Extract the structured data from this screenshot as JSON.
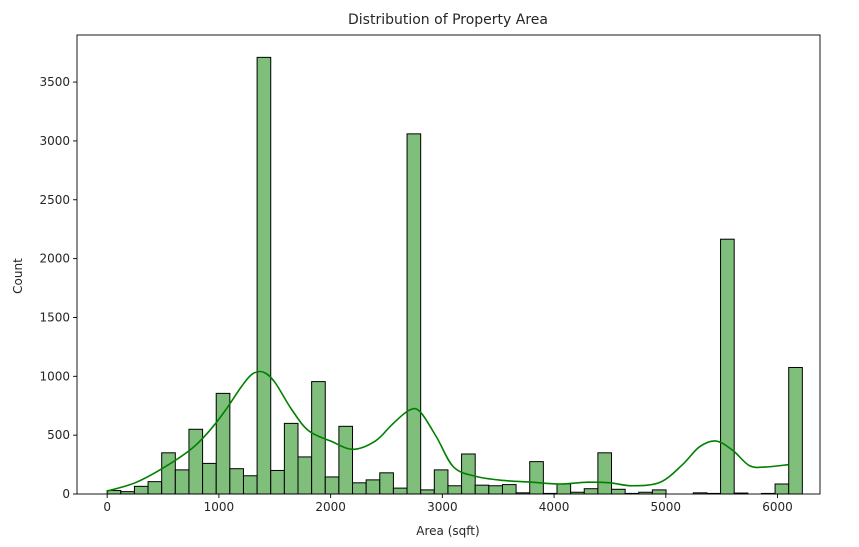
{
  "chart_data": {
    "type": "bar",
    "title": "Distribution of Property Area",
    "xlabel": "Area (sqft)",
    "ylabel": "Count",
    "xlim": [
      -270,
      6380
    ],
    "ylim": [
      0,
      3900
    ],
    "xticks": [
      0,
      1000,
      2000,
      3000,
      4000,
      5000,
      6000
    ],
    "yticks": [
      0,
      500,
      1000,
      1500,
      2000,
      2500,
      3000,
      3500
    ],
    "bin_width": 122,
    "bin_start": 0,
    "values": [
      30,
      20,
      65,
      105,
      350,
      205,
      550,
      260,
      855,
      215,
      155,
      3710,
      200,
      600,
      315,
      955,
      145,
      575,
      95,
      120,
      180,
      50,
      3060,
      35,
      205,
      70,
      340,
      75,
      70,
      80,
      10,
      275,
      5,
      85,
      15,
      45,
      350,
      40,
      5,
      15,
      35,
      0,
      0,
      10,
      5,
      2165,
      8,
      0,
      5,
      85,
      1075
    ],
    "kde": {
      "name": "kde",
      "x": [
        0,
        250,
        500,
        750,
        900,
        1050,
        1200,
        1300,
        1400,
        1500,
        1650,
        1800,
        2000,
        2200,
        2400,
        2550,
        2700,
        2800,
        2950,
        3100,
        3300,
        3550,
        3800,
        4050,
        4300,
        4500,
        4700,
        4950,
        5150,
        5300,
        5450,
        5600,
        5750,
        5900,
        6100
      ],
      "y": [
        25,
        95,
        220,
        380,
        520,
        700,
        910,
        1020,
        1035,
        950,
        720,
        540,
        450,
        380,
        450,
        590,
        710,
        700,
        480,
        230,
        150,
        115,
        100,
        85,
        100,
        95,
        70,
        100,
        250,
        400,
        450,
        370,
        240,
        230,
        250
      ]
    },
    "colors": {
      "bar_fill": "#7fbf7b",
      "bar_edge": "#000000",
      "kde_line": "#008000"
    },
    "grid": false,
    "legend": "none"
  }
}
